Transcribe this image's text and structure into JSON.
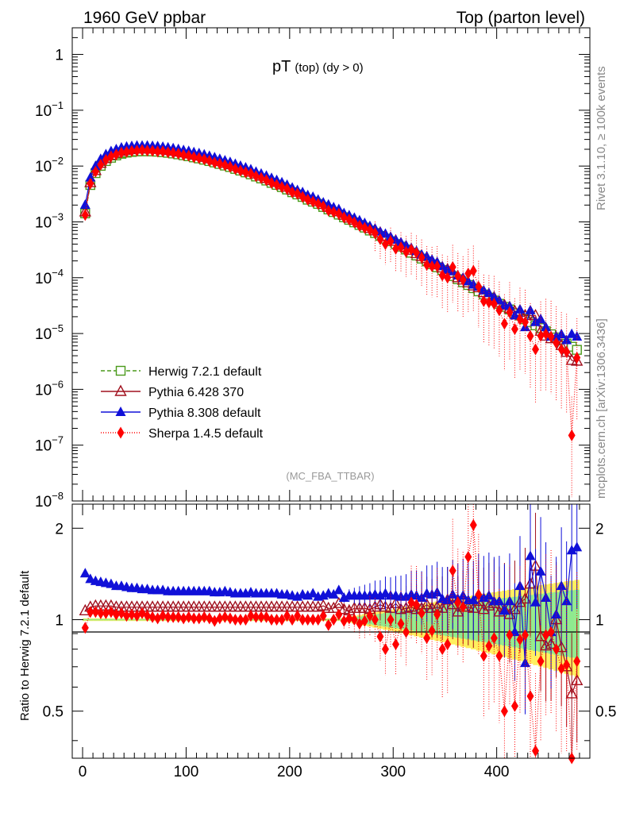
{
  "header": {
    "left": "1960 GeV ppbar",
    "right": "Top (parton level)"
  },
  "side_labels": {
    "rivet": "Rivet 3.1.10, ≥ 100k events",
    "mcplots": "mcplots.cern.ch [arXiv:1306.3436]"
  },
  "chart_data": [
    {
      "type": "line",
      "panel": "main",
      "title": "pT",
      "title_sub": "(top) (dy > 0)",
      "watermark": "(MC_FBA_TTBAR)",
      "xlabel": "",
      "ylabel": "",
      "yscale": "log",
      "xlim": [
        -10,
        490
      ],
      "ylim": [
        1e-08,
        3
      ],
      "ytick_labels": [
        {
          "v": 1,
          "label": "1"
        },
        {
          "v": 0.1,
          "label": "10^-1"
        },
        {
          "v": 0.01,
          "label": "10^-2"
        },
        {
          "v": 0.001,
          "label": "10^-3"
        },
        {
          "v": 0.0001,
          "label": "10^-4"
        },
        {
          "v": 1e-05,
          "label": "10^-5"
        },
        {
          "v": 1e-06,
          "label": "10^-6"
        },
        {
          "v": 1e-07,
          "label": "10^-7"
        },
        {
          "v": 1e-08,
          "label": "10^-8"
        }
      ],
      "legend_position": "lower-left",
      "x": [
        2.5,
        7.5,
        12.5,
        17.5,
        22.5,
        27.5,
        32.5,
        37.5,
        42.5,
        47.5,
        52.5,
        57.5,
        62.5,
        67.5,
        72.5,
        77.5,
        82.5,
        87.5,
        92.5,
        97.5,
        102.5,
        107.5,
        112.5,
        117.5,
        122.5,
        127.5,
        132.5,
        137.5,
        142.5,
        147.5,
        152.5,
        157.5,
        162.5,
        167.5,
        172.5,
        177.5,
        182.5,
        187.5,
        192.5,
        197.5,
        202.5,
        207.5,
        212.5,
        217.5,
        222.5,
        227.5,
        232.5,
        237.5,
        242.5,
        247.5,
        252.5,
        257.5,
        262.5,
        267.5,
        272.5,
        277.5,
        282.5,
        287.5,
        292.5,
        297.5,
        302.5,
        307.5,
        312.5,
        317.5,
        322.5,
        327.5,
        332.5,
        337.5,
        342.5,
        347.5,
        352.5,
        357.5,
        362.5,
        367.5,
        372.5,
        377.5,
        382.5,
        387.5,
        392.5,
        397.5,
        402.5,
        407.5,
        412.5,
        417.5,
        422.5,
        427.5,
        432.5,
        437.5,
        442.5,
        447.5,
        452.5,
        457.5,
        462.5,
        467.5,
        472.5,
        477.5
      ],
      "series": [
        {
          "name": "Herwig 7.2.1 default",
          "color": "#4a9a1a",
          "dash": "5,3",
          "marker": "open-square",
          "values": [
            0.00142,
            0.00458,
            0.00747,
            0.0101,
            0.0123,
            0.0141,
            0.0155,
            0.0166,
            0.0174,
            0.0179,
            0.0183,
            0.0184,
            0.0184,
            0.0183,
            0.0181,
            0.0177,
            0.0173,
            0.0168,
            0.0162,
            0.0156,
            0.015,
            0.0143,
            0.0137,
            0.013,
            0.0123,
            0.0116,
            0.0109,
            0.0102,
            0.0096,
            0.0089,
            0.0083,
            0.0077,
            0.0071,
            0.0065,
            0.006,
            0.0055,
            0.005,
            0.0046,
            0.0042,
            0.0038,
            0.0034,
            0.0031,
            0.0028,
            0.0025,
            0.0023,
            0.0021,
            0.00185,
            0.00167,
            0.0015,
            0.00135,
            0.00121,
            0.00109,
            0.00098,
            0.00088,
            0.00079,
            0.0007,
            0.00063,
            0.00056,
            0.0005,
            0.00045,
            0.0004,
            0.00036,
            0.00032,
            0.00028,
            0.00025,
            0.00022,
            0.000196,
            0.000174,
            0.000154,
            0.000137,
            0.000121,
            0.000107,
            9.4e-05,
            8.3e-05,
            7.4e-05,
            6.5e-05,
            5.7e-05,
            5e-05,
            4.4e-05,
            3.9e-05,
            3.4e-05,
            3e-05,
            2.7e-05,
            2.3e-05,
            2.1e-05,
            1.8e-05,
            1.6e-05,
            1.4e-05,
            1.25e-05,
            1.1e-05,
            9.7e-06,
            8.5e-06,
            7.5e-06,
            6.6e-06,
            5.8e-06,
            5.1e-06
          ]
        },
        {
          "name": "Pythia 6.428 370",
          "color": "#a0101e",
          "dash": "",
          "marker": "open-triangle",
          "values": [
            0.00151,
            0.00504,
            0.0083,
            0.0112,
            0.0136,
            0.0156,
            0.0171,
            0.0183,
            0.0191,
            0.0197,
            0.0202,
            0.0202,
            0.0202,
            0.0201,
            0.0199,
            0.0195,
            0.019,
            0.0185,
            0.0178,
            0.0172,
            0.0165,
            0.0157,
            0.0151,
            0.0143,
            0.0135,
            0.0128,
            0.012,
            0.0112,
            0.0106,
            0.0098,
            0.0091,
            0.0085,
            0.0078,
            0.0072,
            0.0066,
            0.006,
            0.0055,
            0.0051,
            0.0046,
            0.0042,
            0.0037,
            0.0034,
            0.0031,
            0.0028,
            0.0025,
            0.0023,
            0.00205,
            0.00182,
            0.00164,
            0.00152,
            0.00131,
            0.00117,
            0.00107,
            0.00096,
            0.00086,
            0.00076,
            0.00069,
            0.00063,
            0.00055,
            0.00049,
            0.00045,
            0.00039,
            0.00035,
            0.00031,
            0.00027,
            0.00024,
            0.00022,
            0.00019,
            0.00017,
            0.00015,
            0.00014,
            0.00012,
            0.0001,
            9.1e-05,
            8.1e-05,
            7.1e-05,
            6.6e-05,
            5.4e-05,
            4.9e-05,
            4.4e-05,
            3.6e-05,
            3.2e-05,
            2.8e-05,
            2.5e-05,
            2.4e-05,
            2.1e-05,
            2.1e-05,
            2.1e-05,
            1.1e-05,
            9e-06,
            8.1e-06,
            8.5e-06,
            6.1e-06,
            4.6e-06,
            3.3e-06,
            3.2e-06
          ]
        },
        {
          "name": "Pythia 8.308 default",
          "color": "#1010d8",
          "dash": "",
          "marker": "filled-triangle",
          "values": [
            0.00202,
            0.00623,
            0.01,
            0.0134,
            0.0162,
            0.0184,
            0.02,
            0.0214,
            0.0222,
            0.0228,
            0.0232,
            0.0232,
            0.0232,
            0.0229,
            0.0226,
            0.0221,
            0.0215,
            0.0208,
            0.0201,
            0.0193,
            0.0186,
            0.0177,
            0.017,
            0.0161,
            0.0152,
            0.0143,
            0.0134,
            0.0126,
            0.0118,
            0.0109,
            0.0101,
            0.0094,
            0.0087,
            0.0079,
            0.0073,
            0.0067,
            0.0061,
            0.0056,
            0.0051,
            0.0046,
            0.0041,
            0.0037,
            0.0034,
            0.003,
            0.0028,
            0.0025,
            0.00222,
            0.00204,
            0.00182,
            0.00169,
            0.00143,
            0.00131,
            0.00118,
            0.00106,
            0.00095,
            0.00084,
            0.00076,
            0.00067,
            0.00061,
            0.00054,
            0.00048,
            0.00043,
            0.00038,
            0.00034,
            0.0003,
            0.00026,
            0.00024,
            0.00021,
            0.00019,
            0.00016,
            0.00014,
            0.00013,
            0.00011,
            0.0001,
            8.6e-05,
            7.5e-05,
            6.9e-05,
            5.9e-05,
            5.3e-05,
            4.5e-05,
            3.9e-05,
            3.2e-05,
            3.1e-05,
            2.1e-05,
            2.7e-05,
            1.3e-05,
            2.6e-05,
            1.6e-05,
            1.8e-05,
            1.3e-05,
            8.8e-06,
            8.8e-06,
            9.7e-06,
            7.6e-06,
            9.8e-06,
            8.8e-06
          ]
        },
        {
          "name": "Sherpa 1.4.5 default",
          "color": "#ff0000",
          "dash": "1,2",
          "marker": "filled-diamond",
          "values": [
            0.00133,
            0.00485,
            0.00792,
            0.0106,
            0.0129,
            0.0149,
            0.0161,
            0.0174,
            0.0179,
            0.0186,
            0.0189,
            0.0193,
            0.0189,
            0.0187,
            0.0182,
            0.0183,
            0.0176,
            0.0172,
            0.0166,
            0.0158,
            0.0153,
            0.0144,
            0.0139,
            0.0132,
            0.0124,
            0.0115,
            0.011,
            0.0104,
            0.0097,
            0.0089,
            0.0083,
            0.0077,
            0.0073,
            0.0066,
            0.0061,
            0.0056,
            0.005,
            0.0046,
            0.0042,
            0.0039,
            0.0034,
            0.0032,
            0.0028,
            0.0025,
            0.0023,
            0.0021,
            0.0019,
            0.0016,
            0.0015,
            0.0014,
            0.0012,
            0.0011,
            0.00098,
            0.00085,
            0.00078,
            0.00072,
            0.00063,
            0.00049,
            0.0004,
            0.00045,
            0.00033,
            0.00035,
            0.00029,
            0.00032,
            0.00028,
            0.00023,
            0.00017,
            0.00016,
            0.00016,
            0.00011,
            0.0001,
            0.000155,
            0.000107,
            9.1e-05,
            0.000119,
            0.000133,
            6.9e-05,
            3.8e-05,
            3.6e-05,
            3.4e-05,
            2.6e-05,
            1.5e-05,
            2.4e-05,
            1.2e-05,
            1.8e-05,
            1.6e-05,
            9e-06,
            5.2e-06,
            9.1e-06,
            9.8e-06,
            8.8e-06,
            6.8e-06,
            5.2e-06,
            4.7e-06,
            1.5e-07,
            3.7e-06
          ]
        }
      ]
    },
    {
      "type": "line",
      "panel": "ratio",
      "xlabel": "",
      "ylabel": "Ratio to Herwig 7.2.1 default",
      "yscale": "log",
      "xlim": [
        -10,
        490
      ],
      "ylim": [
        0.35,
        2.4
      ],
      "xticks": [
        0,
        100,
        200,
        300,
        400
      ],
      "yticks": [
        0.5,
        1,
        2
      ],
      "reference": 1,
      "series_ratio": [
        {
          "name": "Pythia 6.428 370",
          "values": [
            1.07,
            1.1,
            1.11,
            1.11,
            1.11,
            1.11,
            1.1,
            1.1,
            1.1,
            1.1,
            1.1,
            1.1,
            1.1,
            1.1,
            1.1,
            1.1,
            1.1,
            1.1,
            1.1,
            1.1,
            1.1,
            1.1,
            1.1,
            1.1,
            1.1,
            1.1,
            1.1,
            1.1,
            1.1,
            1.1,
            1.1,
            1.1,
            1.1,
            1.1,
            1.1,
            1.1,
            1.1,
            1.1,
            1.1,
            1.1,
            1.1,
            1.1,
            1.1,
            1.1,
            1.1,
            1.1,
            1.11,
            1.09,
            1.09,
            1.13,
            1.08,
            1.07,
            1.09,
            1.09,
            1.09,
            1.08,
            1.1,
            1.12,
            1.1,
            1.09,
            1.13,
            1.08,
            1.09,
            1.1,
            1.08,
            1.09,
            1.12,
            1.09,
            1.1,
            1.09,
            1.16,
            1.12,
            1.06,
            1.1,
            1.1,
            1.09,
            1.15,
            1.08,
            1.11,
            1.13,
            1.06,
            1.08,
            1.04,
            1.08,
            1.14,
            1.17,
            1.31,
            1.5,
            0.88,
            0.82,
            0.83,
            1.0,
            0.81,
            0.7,
            0.57,
            0.63
          ]
        },
        {
          "name": "Pythia 8.308 default",
          "values": [
            1.42,
            1.36,
            1.34,
            1.33,
            1.32,
            1.31,
            1.29,
            1.29,
            1.28,
            1.27,
            1.27,
            1.26,
            1.26,
            1.25,
            1.25,
            1.25,
            1.24,
            1.24,
            1.24,
            1.24,
            1.24,
            1.24,
            1.24,
            1.24,
            1.24,
            1.23,
            1.23,
            1.24,
            1.23,
            1.22,
            1.22,
            1.22,
            1.23,
            1.22,
            1.22,
            1.22,
            1.22,
            1.22,
            1.21,
            1.21,
            1.2,
            1.19,
            1.21,
            1.2,
            1.22,
            1.19,
            1.2,
            1.22,
            1.21,
            1.25,
            1.18,
            1.2,
            1.2,
            1.2,
            1.2,
            1.2,
            1.21,
            1.2,
            1.22,
            1.2,
            1.2,
            1.19,
            1.19,
            1.21,
            1.2,
            1.18,
            1.22,
            1.21,
            1.23,
            1.17,
            1.16,
            1.21,
            1.17,
            1.2,
            1.16,
            1.16,
            1.21,
            1.18,
            1.2,
            1.15,
            1.15,
            1.07,
            1.15,
            0.91,
            1.29,
            0.72,
            1.62,
            1.14,
            1.44,
            1.18,
            0.91,
            1.04,
            1.29,
            1.15,
            1.69,
            1.73
          ]
        },
        {
          "name": "Sherpa 1.4.5 default",
          "values": [
            0.94,
            1.06,
            1.06,
            1.05,
            1.05,
            1.06,
            1.04,
            1.05,
            1.03,
            1.04,
            1.03,
            1.05,
            1.03,
            1.02,
            1.01,
            1.03,
            1.02,
            1.02,
            1.02,
            1.01,
            1.02,
            1.01,
            1.01,
            1.02,
            1.01,
            0.99,
            1.01,
            1.02,
            1.01,
            1.0,
            1.0,
            1.0,
            1.03,
            1.02,
            1.02,
            1.02,
            1.0,
            1.0,
            1.0,
            1.03,
            1.0,
            1.03,
            1.0,
            1.0,
            1.0,
            1.0,
            1.03,
            0.96,
            1.0,
            1.04,
            0.99,
            1.01,
            1.0,
            0.97,
            0.99,
            1.03,
            1.0,
            0.88,
            0.8,
            1.0,
            0.83,
            0.97,
            0.91,
            1.14,
            1.12,
            1.05,
            0.87,
            0.92,
            1.04,
            0.8,
            0.83,
            1.45,
            1.14,
            1.1,
            1.61,
            2.05,
            1.21,
            0.76,
            0.82,
            0.87,
            0.76,
            0.5,
            0.89,
            0.52,
            0.86,
            0.89,
            0.56,
            0.37,
            0.73,
            0.89,
            0.91,
            0.8,
            0.69,
            0.71,
            0.026,
            0.73
          ]
        }
      ]
    }
  ]
}
